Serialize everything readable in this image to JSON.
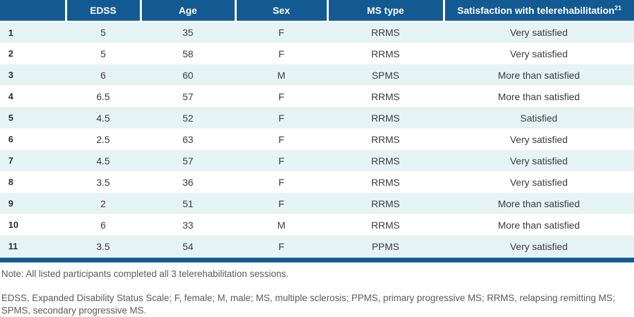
{
  "table": {
    "columns": [
      {
        "label": ""
      },
      {
        "label": "EDSS"
      },
      {
        "label": "Age"
      },
      {
        "label": "Sex"
      },
      {
        "label": "MS type"
      },
      {
        "label": "Satisfaction with telerehabilitation",
        "superscript": "21"
      }
    ],
    "rows": [
      {
        "index": "1",
        "edss": "5",
        "age": "35",
        "sex": "F",
        "ms_type": "RRMS",
        "satisfaction": "Very satisfied"
      },
      {
        "index": "2",
        "edss": "5",
        "age": "58",
        "sex": "F",
        "ms_type": "RRMS",
        "satisfaction": "Very satisfied"
      },
      {
        "index": "3",
        "edss": "6",
        "age": "60",
        "sex": "M",
        "ms_type": "SPMS",
        "satisfaction": "More than satisfied"
      },
      {
        "index": "4",
        "edss": "6.5",
        "age": "57",
        "sex": "F",
        "ms_type": "RRMS",
        "satisfaction": "More than satisfied"
      },
      {
        "index": "5",
        "edss": "4.5",
        "age": "52",
        "sex": "F",
        "ms_type": "RRMS",
        "satisfaction": "Satisfied"
      },
      {
        "index": "6",
        "edss": "2.5",
        "age": "63",
        "sex": "F",
        "ms_type": "RRMS",
        "satisfaction": "Very satisfied"
      },
      {
        "index": "7",
        "edss": "4.5",
        "age": "57",
        "sex": "F",
        "ms_type": "RRMS",
        "satisfaction": "Very satisfied"
      },
      {
        "index": "8",
        "edss": "3.5",
        "age": "36",
        "sex": "F",
        "ms_type": "RRMS",
        "satisfaction": "Very satisfied"
      },
      {
        "index": "9",
        "edss": "2",
        "age": "51",
        "sex": "F",
        "ms_type": "RRMS",
        "satisfaction": "More than satisfied"
      },
      {
        "index": "10",
        "edss": "6",
        "age": "33",
        "sex": "M",
        "ms_type": "RRMS",
        "satisfaction": "More than satisfied"
      },
      {
        "index": "11",
        "edss": "3.5",
        "age": "54",
        "sex": "F",
        "ms_type": "PPMS",
        "satisfaction": "Very satisfied"
      }
    ]
  },
  "notes": {
    "note": "Note: All listed participants completed all 3 telerehabilitation sessions.",
    "abbreviations": "EDSS, Expanded Disability Status Scale; F, female; M, male; MS, multiple sclerosis; PPMS, primary progressive MS; RRMS, relapsing remitting MS; SPMS, secondary progressive MS."
  },
  "colors": {
    "header_bg": "#145a92",
    "row_alt_bg": "#e6f3f5",
    "row_bg": "#ffffff",
    "header_text": "#ffffff",
    "body_text": "#3a3a3a",
    "note_text": "#5a5a5a"
  }
}
